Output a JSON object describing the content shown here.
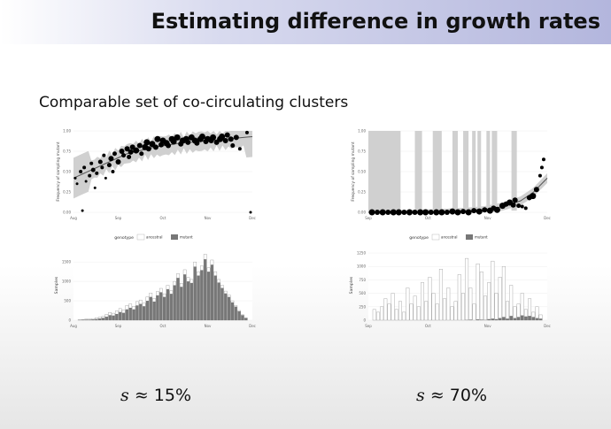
{
  "title": "Estimating difference in growth rates",
  "subtitle": "Comparable set of co-circulating clusters",
  "legend": {
    "title": "genotype",
    "items": [
      "ancestral",
      "mutant"
    ]
  },
  "colors": {
    "ancestral": "#ffffff",
    "mutant": "#777777",
    "ribbon": "#d0d0d0",
    "fit": "#555555"
  },
  "left": {
    "result": {
      "symbol": "s",
      "relation": "≈",
      "value": "15%"
    },
    "chart_data": [
      {
        "type": "scatter",
        "ylabel": "Frequency of sampling mutant",
        "ytick_labels": [
          "0.00",
          "0.25",
          "0.50",
          "0.75",
          "1.00"
        ],
        "ylim": [
          0,
          1
        ],
        "xtick_labels": [
          "Aug",
          "Sep",
          "Oct",
          "Nov",
          "Dec"
        ],
        "fit": {
          "x": [
            0,
            0.1,
            0.2,
            0.3,
            0.45,
            0.6,
            0.75,
            0.9,
            1.0
          ],
          "y": [
            0.42,
            0.52,
            0.62,
            0.72,
            0.8,
            0.85,
            0.88,
            0.91,
            0.93
          ]
        },
        "points_x": [
          0.01,
          0.02,
          0.04,
          0.05,
          0.06,
          0.07,
          0.09,
          0.1,
          0.11,
          0.12,
          0.13,
          0.15,
          0.16,
          0.17,
          0.18,
          0.2,
          0.21,
          0.22,
          0.23,
          0.25,
          0.27,
          0.28,
          0.3,
          0.31,
          0.32,
          0.33,
          0.35,
          0.37,
          0.38,
          0.4,
          0.41,
          0.42,
          0.44,
          0.46,
          0.47,
          0.49,
          0.5,
          0.52,
          0.53,
          0.55,
          0.56,
          0.58,
          0.6,
          0.61,
          0.63,
          0.64,
          0.66,
          0.68,
          0.69,
          0.71,
          0.72,
          0.74,
          0.75,
          0.77,
          0.78,
          0.8,
          0.82,
          0.83,
          0.85,
          0.86,
          0.88,
          0.89,
          0.91,
          0.93,
          0.97,
          0.99
        ],
        "points_y": [
          0.42,
          0.35,
          0.5,
          0.02,
          0.55,
          0.38,
          0.45,
          0.6,
          0.52,
          0.3,
          0.48,
          0.62,
          0.55,
          0.7,
          0.42,
          0.58,
          0.66,
          0.5,
          0.72,
          0.62,
          0.75,
          0.7,
          0.78,
          0.68,
          0.74,
          0.8,
          0.76,
          0.82,
          0.72,
          0.8,
          0.86,
          0.78,
          0.84,
          0.8,
          0.9,
          0.83,
          0.88,
          0.85,
          0.82,
          0.9,
          0.87,
          0.92,
          0.84,
          0.88,
          0.9,
          0.86,
          0.92,
          0.88,
          0.85,
          0.9,
          0.93,
          0.87,
          0.9,
          0.88,
          0.92,
          0.86,
          0.9,
          0.93,
          0.88,
          0.95,
          0.9,
          0.82,
          0.92,
          0.78,
          0.98,
          0.0
        ],
        "points_size": [
          1.5,
          1.5,
          2,
          1.5,
          2,
          1.5,
          2,
          2,
          2.5,
          1.5,
          2,
          2.5,
          2,
          2,
          1.5,
          2.5,
          3,
          2,
          2.5,
          3,
          3,
          2.5,
          3,
          2.5,
          3,
          3,
          3.5,
          3,
          2.5,
          3.5,
          3.5,
          3,
          3.5,
          3,
          3.5,
          3,
          3.5,
          3.5,
          3,
          3.5,
          3.5,
          3.5,
          3,
          3.5,
          3.5,
          3,
          3.5,
          3.5,
          3,
          3.5,
          3.5,
          3,
          3.5,
          3,
          3.5,
          3,
          3.5,
          3.5,
          3,
          3,
          3,
          2.5,
          3,
          2,
          2,
          1.5
        ]
      },
      {
        "type": "bar",
        "ylabel": "Samples",
        "ytick_labels": [
          "0",
          "500",
          "1000",
          "1500"
        ],
        "ylim": [
          0,
          1800
        ],
        "xtick_labels": [
          "Aug",
          "Sep",
          "Oct",
          "Nov",
          "Dec"
        ],
        "series": [
          {
            "name": "ancestral",
            "values": [
              10,
              20,
              30,
              30,
              40,
              60,
              80,
              100,
              150,
              200,
              180,
              240,
              300,
              260,
              380,
              420,
              360,
              480,
              520,
              440,
              600,
              700,
              560,
              740,
              820,
              680,
              900,
              760,
              1000,
              1200,
              950,
              1300,
              1100,
              1050,
              1500,
              1250,
              1400,
              1700,
              1350,
              1550,
              1250,
              1050,
              900,
              750,
              650,
              500,
              380,
              250,
              140,
              60
            ]
          },
          {
            "name": "mutant",
            "values": [
              5,
              10,
              15,
              15,
              20,
              30,
              45,
              60,
              90,
              130,
              120,
              160,
              210,
              190,
              280,
              320,
              280,
              380,
              420,
              360,
              500,
              600,
              480,
              640,
              720,
              600,
              800,
              680,
              900,
              1090,
              860,
              1180,
              1000,
              960,
              1380,
              1150,
              1290,
              1570,
              1250,
              1430,
              1150,
              970,
              830,
              690,
              600,
              460,
              350,
              230,
              130,
              55
            ]
          }
        ]
      }
    ]
  },
  "right": {
    "result": {
      "symbol": "s",
      "relation": "≈",
      "value": "70%"
    },
    "chart_data": [
      {
        "type": "scatter",
        "ylabel": "Frequency of sampling mutant",
        "ytick_labels": [
          "0.00",
          "0.25",
          "0.50",
          "0.75",
          "1.00"
        ],
        "ylim": [
          0,
          1
        ],
        "xtick_labels": [
          "Sep",
          "Oct",
          "Nov",
          "Dec"
        ],
        "fit": {
          "x": [
            0,
            0.2,
            0.4,
            0.55,
            0.65,
            0.75,
            0.85,
            0.92,
            1.0
          ],
          "y": [
            0.0,
            0.0,
            0.005,
            0.015,
            0.03,
            0.07,
            0.14,
            0.24,
            0.42
          ]
        },
        "ribbon_spikes_x": [
          [
            0,
            0.18
          ],
          [
            0.26,
            0.3
          ],
          [
            0.36,
            0.41
          ],
          [
            0.47,
            0.5
          ],
          [
            0.53,
            0.56
          ],
          [
            0.58,
            0.6
          ],
          [
            0.61,
            0.63
          ],
          [
            0.66,
            0.68
          ],
          [
            0.69,
            0.72
          ],
          [
            0.8,
            0.83
          ]
        ],
        "points_x": [
          0.02,
          0.05,
          0.08,
          0.11,
          0.14,
          0.17,
          0.2,
          0.23,
          0.26,
          0.29,
          0.32,
          0.35,
          0.38,
          0.41,
          0.44,
          0.47,
          0.5,
          0.53,
          0.56,
          0.59,
          0.62,
          0.65,
          0.68,
          0.7,
          0.72,
          0.75,
          0.77,
          0.79,
          0.81,
          0.82,
          0.84,
          0.86,
          0.88,
          0.9,
          0.92,
          0.94,
          0.96,
          0.97,
          0.98
        ],
        "points_y": [
          0.0,
          0.0,
          0.0,
          0.0,
          0.0,
          0.0,
          0.0,
          0.0,
          0.0,
          0.0,
          0.0,
          0.0,
          0.0,
          0.0,
          0.0,
          0.01,
          0.0,
          0.01,
          0.0,
          0.02,
          0.01,
          0.03,
          0.02,
          0.05,
          0.03,
          0.08,
          0.1,
          0.12,
          0.09,
          0.15,
          0.08,
          0.07,
          0.05,
          0.18,
          0.2,
          0.28,
          0.45,
          0.55,
          0.65
        ],
        "points_size": [
          3.5,
          3,
          3.5,
          3,
          3.5,
          3.5,
          3,
          3.5,
          3,
          3.5,
          3.5,
          3,
          3.5,
          3.5,
          3,
          3.5,
          3.5,
          3,
          3.5,
          3,
          3.5,
          3,
          3.5,
          3,
          3.5,
          3.5,
          3,
          3.5,
          3,
          3,
          2.5,
          2,
          2,
          3,
          3.5,
          3,
          2,
          2,
          2
        ]
      },
      {
        "type": "bar",
        "ylabel": "Samples",
        "ytick_labels": [
          "0",
          "250",
          "500",
          "750",
          "1000",
          "1250"
        ],
        "ylim": [
          0,
          1300
        ],
        "xtick_labels": [
          "Sep",
          "Oct",
          "Nov",
          "Dec"
        ],
        "series": [
          {
            "name": "ancestral",
            "values": [
              200,
              150,
              250,
              400,
              300,
              500,
              200,
              350,
              150,
              600,
              300,
              450,
              250,
              700,
              350,
              800,
              500,
              300,
              950,
              400,
              600,
              250,
              350,
              850,
              500,
              1150,
              600,
              300,
              1050,
              900,
              450,
              700,
              1100,
              500,
              800,
              1000,
              350,
              650,
              250,
              300,
              500,
              200,
              400,
              150,
              250,
              100
            ]
          },
          {
            "name": "mutant",
            "values": [
              0,
              0,
              0,
              0,
              0,
              0,
              0,
              0,
              0,
              0,
              0,
              0,
              0,
              0,
              0,
              0,
              0,
              0,
              0,
              0,
              0,
              0,
              0,
              0,
              0,
              5,
              10,
              0,
              15,
              10,
              5,
              20,
              30,
              20,
              40,
              60,
              30,
              80,
              40,
              60,
              90,
              70,
              80,
              60,
              40,
              30
            ]
          }
        ]
      }
    ]
  }
}
